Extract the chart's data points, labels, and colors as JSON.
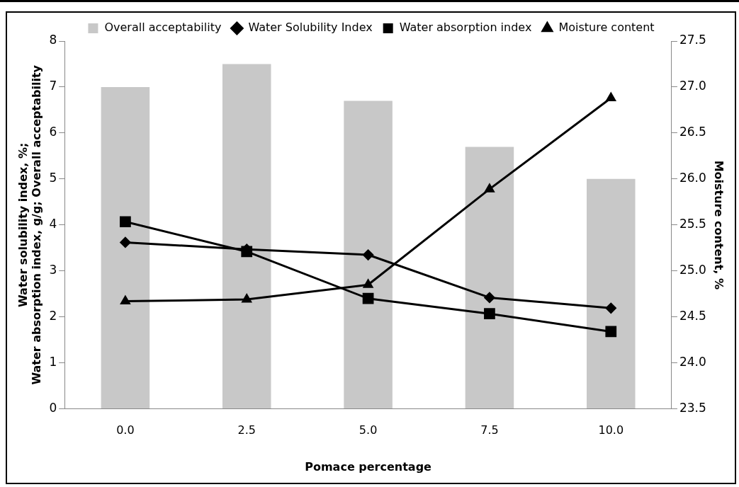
{
  "chart_data": {
    "type": "bar",
    "xlabel": "Pomace percentage",
    "ylabel": "Water solubility index, %; Water absorption index, g/g; Overall acceptability",
    "y2label": "Moisture content, %",
    "categories": [
      "0.0",
      "2.5",
      "5.0",
      "7.5",
      "10.0"
    ],
    "series": [
      {
        "name": "Overall acceptability",
        "color": "#c8c8c8",
        "values": [
          7.0,
          7.5,
          6.7,
          5.7,
          5.0
        ]
      },
      {
        "name": "Water Solubility Index",
        "type": "line",
        "color": "#000000",
        "marker": "diamond",
        "values": [
          3.62,
          3.47,
          3.35,
          2.42,
          2.19
        ]
      },
      {
        "name": "Water absorption index",
        "type": "line",
        "color": "#000000",
        "marker": "square",
        "values": [
          4.07,
          3.42,
          2.4,
          2.07,
          1.68
        ]
      },
      {
        "name": "Moisture content",
        "type": "line",
        "color": "#000000",
        "marker": "triangle",
        "axis": "y2",
        "values": [
          24.67,
          24.69,
          24.85,
          25.89,
          26.88
        ]
      }
    ],
    "ylim": [
      0,
      8
    ],
    "yticks": [
      0,
      1,
      2,
      3,
      4,
      5,
      6,
      7,
      8
    ],
    "y2lim": [
      23.5,
      27.5
    ],
    "y2ticks": [
      23.5,
      {
        "value": 24,
        "label": "24.0"
      },
      24.5,
      {
        "value": 25,
        "label": "25.0"
      },
      25.5,
      {
        "value": 26,
        "label": "26.0"
      },
      26.5,
      {
        "value": 27,
        "label": "27.0"
      },
      27.5
    ],
    "grid": false,
    "legend": "top",
    "line_style": "solid"
  }
}
